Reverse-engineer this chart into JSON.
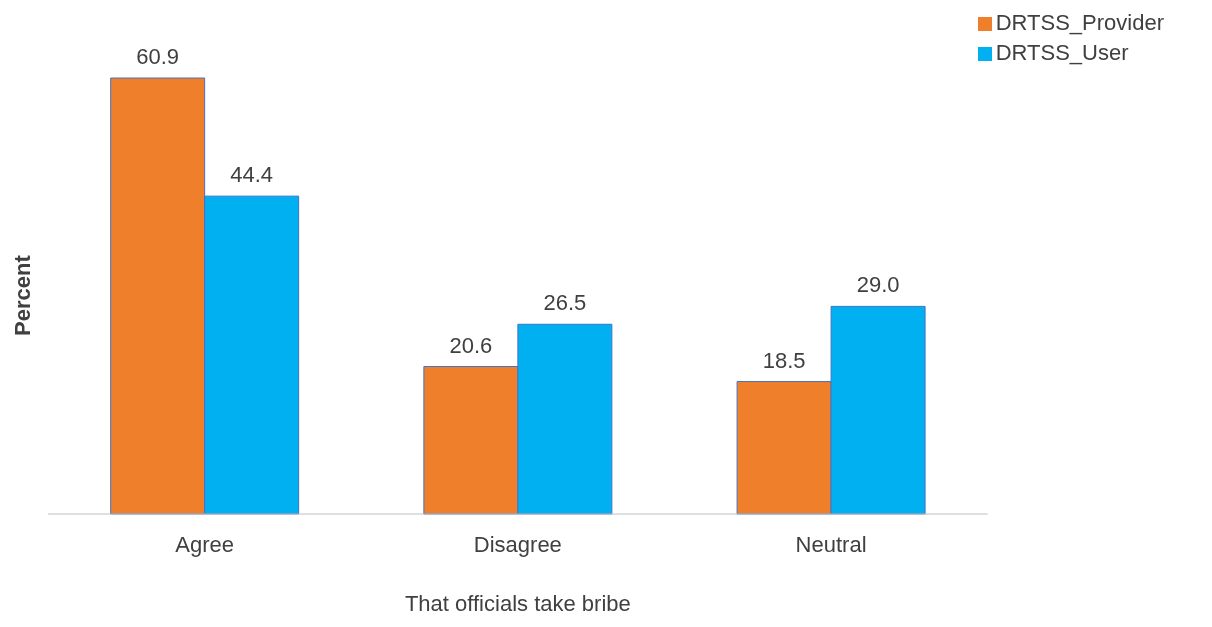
{
  "chart_data": {
    "type": "bar",
    "xlabel": "That officials take bribe",
    "ylabel": "Percent",
    "categories": [
      "Agree",
      "Disagree",
      "Neutral"
    ],
    "series": [
      {
        "name": "DRTSS_Provider",
        "color": "#f07f2c",
        "values": [
          60.9,
          20.6,
          18.5
        ],
        "value_labels": [
          "60.9",
          "20.6",
          "18.5"
        ]
      },
      {
        "name": "DRTSS_User",
        "color": "#00b0f0",
        "values": [
          44.4,
          26.5,
          29.0
        ],
        "value_labels": [
          "44.4",
          "26.5",
          "29.0"
        ]
      }
    ],
    "legend": "top right"
  }
}
